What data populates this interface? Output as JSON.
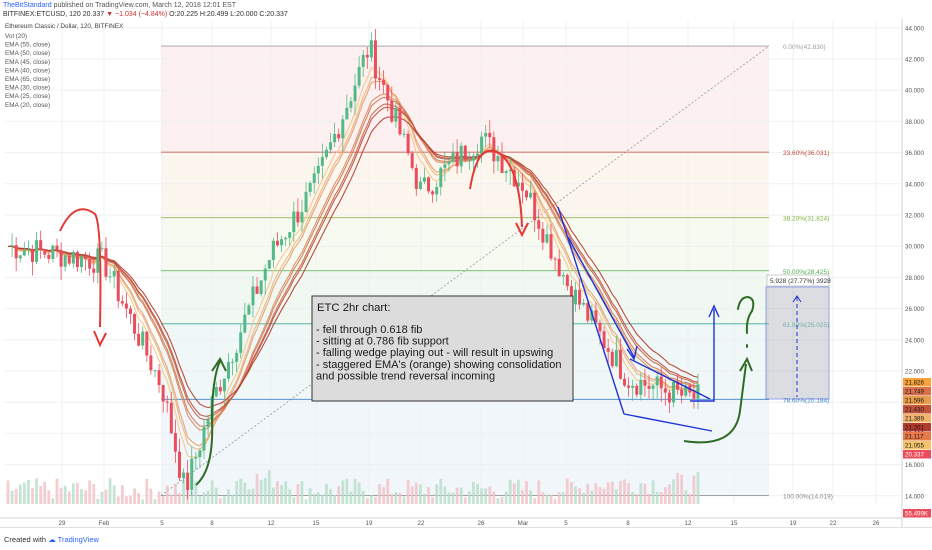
{
  "header": {
    "author": "TheBitStandard",
    "published_line": " published on TradingView.com, March 12, 2018 12:01 EST",
    "symbol_line": "BITFINEX:ETCUSD, 120",
    "last_price": "20.337",
    "change": "−1.034 (−4.84%)",
    "ohlc": "O:20.225 H:20.499 L:20.000 C:20.337"
  },
  "legend": {
    "title": "Ethereum Classic / Dollar, 120, BITFINEX",
    "indicators": [
      "Vol (20)",
      "EMA (55, close)",
      "EMA (50, close)",
      "EMA (45, close)",
      "EMA (40, close)",
      "EMA (65, close)",
      "EMA (30, close)",
      "EMA (25, close)",
      "EMA (20, close)"
    ]
  },
  "footer": {
    "created_with": "Created with",
    "brand": "TradingView"
  },
  "colors": {
    "up": "#53b987",
    "down": "#eb4d5c",
    "ema_light": "#f7c483",
    "ema_dark": "#b23a2b",
    "fib_line": "#9c9c9c",
    "annotation_blue": "#1f33d6",
    "annotation_red": "#e53935",
    "annotation_green": "#2e6b25"
  },
  "chart_data": {
    "type": "candlestick",
    "symbol": "ETCUSD",
    "exchange": "BITFINEX",
    "interval": "120",
    "y_axis": {
      "scale": "linear",
      "range": [
        13.5,
        44.5
      ],
      "ticks": [
        14,
        16,
        18,
        20,
        22,
        24,
        26,
        28,
        30,
        32,
        34,
        36,
        38,
        40,
        42,
        44
      ],
      "position": "right"
    },
    "x_axis": {
      "labels": [
        "29",
        "Feb",
        "5",
        "8",
        "12",
        "15",
        "19",
        "22",
        "26",
        "Mar",
        "5",
        "8",
        "12",
        "15",
        "19",
        "22",
        "26"
      ]
    },
    "price_path": [
      [
        "29",
        30.0
      ],
      [
        "Feb",
        29.0
      ],
      [
        "5",
        21.0
      ],
      [
        "5",
        14.3
      ],
      [
        "8",
        20.5
      ],
      [
        "12",
        29.5
      ],
      [
        "15",
        34.0
      ],
      [
        "19",
        42.8
      ],
      [
        "22",
        33.5
      ],
      [
        "26",
        37.0
      ],
      [
        "Mar",
        34.0
      ],
      [
        "5",
        27.5
      ],
      [
        "8",
        21.5
      ],
      [
        "12",
        20.3
      ]
    ],
    "fib_levels": [
      {
        "label": "0.00%(42.830)",
        "value": 42.83
      },
      {
        "label": "23.60%(36.031)",
        "value": 36.031
      },
      {
        "label": "38.20%(31.824)",
        "value": 31.824
      },
      {
        "label": "50.00%(28.425)",
        "value": 28.425
      },
      {
        "label": "61.80%(25.025)",
        "value": 25.025
      },
      {
        "label": "78.60%(20.184)",
        "value": 20.184
      },
      {
        "label": "100.00%(14.019)",
        "value": 14.019
      }
    ],
    "price_tags": [
      {
        "label": "21.826",
        "value": 21.826
      },
      {
        "label": "21.749",
        "value": 21.749
      },
      {
        "label": "21.596",
        "value": 21.596
      },
      {
        "label": "21.430",
        "value": 21.43
      },
      {
        "label": "21.389",
        "value": 21.389
      },
      {
        "label": "21.201",
        "value": 21.201
      },
      {
        "label": "21.117",
        "value": 21.117
      },
      {
        "label": "21.055",
        "value": 21.055
      },
      {
        "label": "20.337",
        "value": 20.337
      }
    ],
    "volume_tag": "55.499K",
    "measure_label": "5.928 (27.77%) 3928",
    "annotation": {
      "title": "ETC 2hr chart:",
      "lines": [
        "- fell through 0.618 fib",
        "- sitting at 0.786 fib support",
        "- falling wedge playing out - will result in upswing",
        "- staggered EMA's (orange) showing consolidation",
        "and possible trend reversal incoming"
      ]
    }
  }
}
